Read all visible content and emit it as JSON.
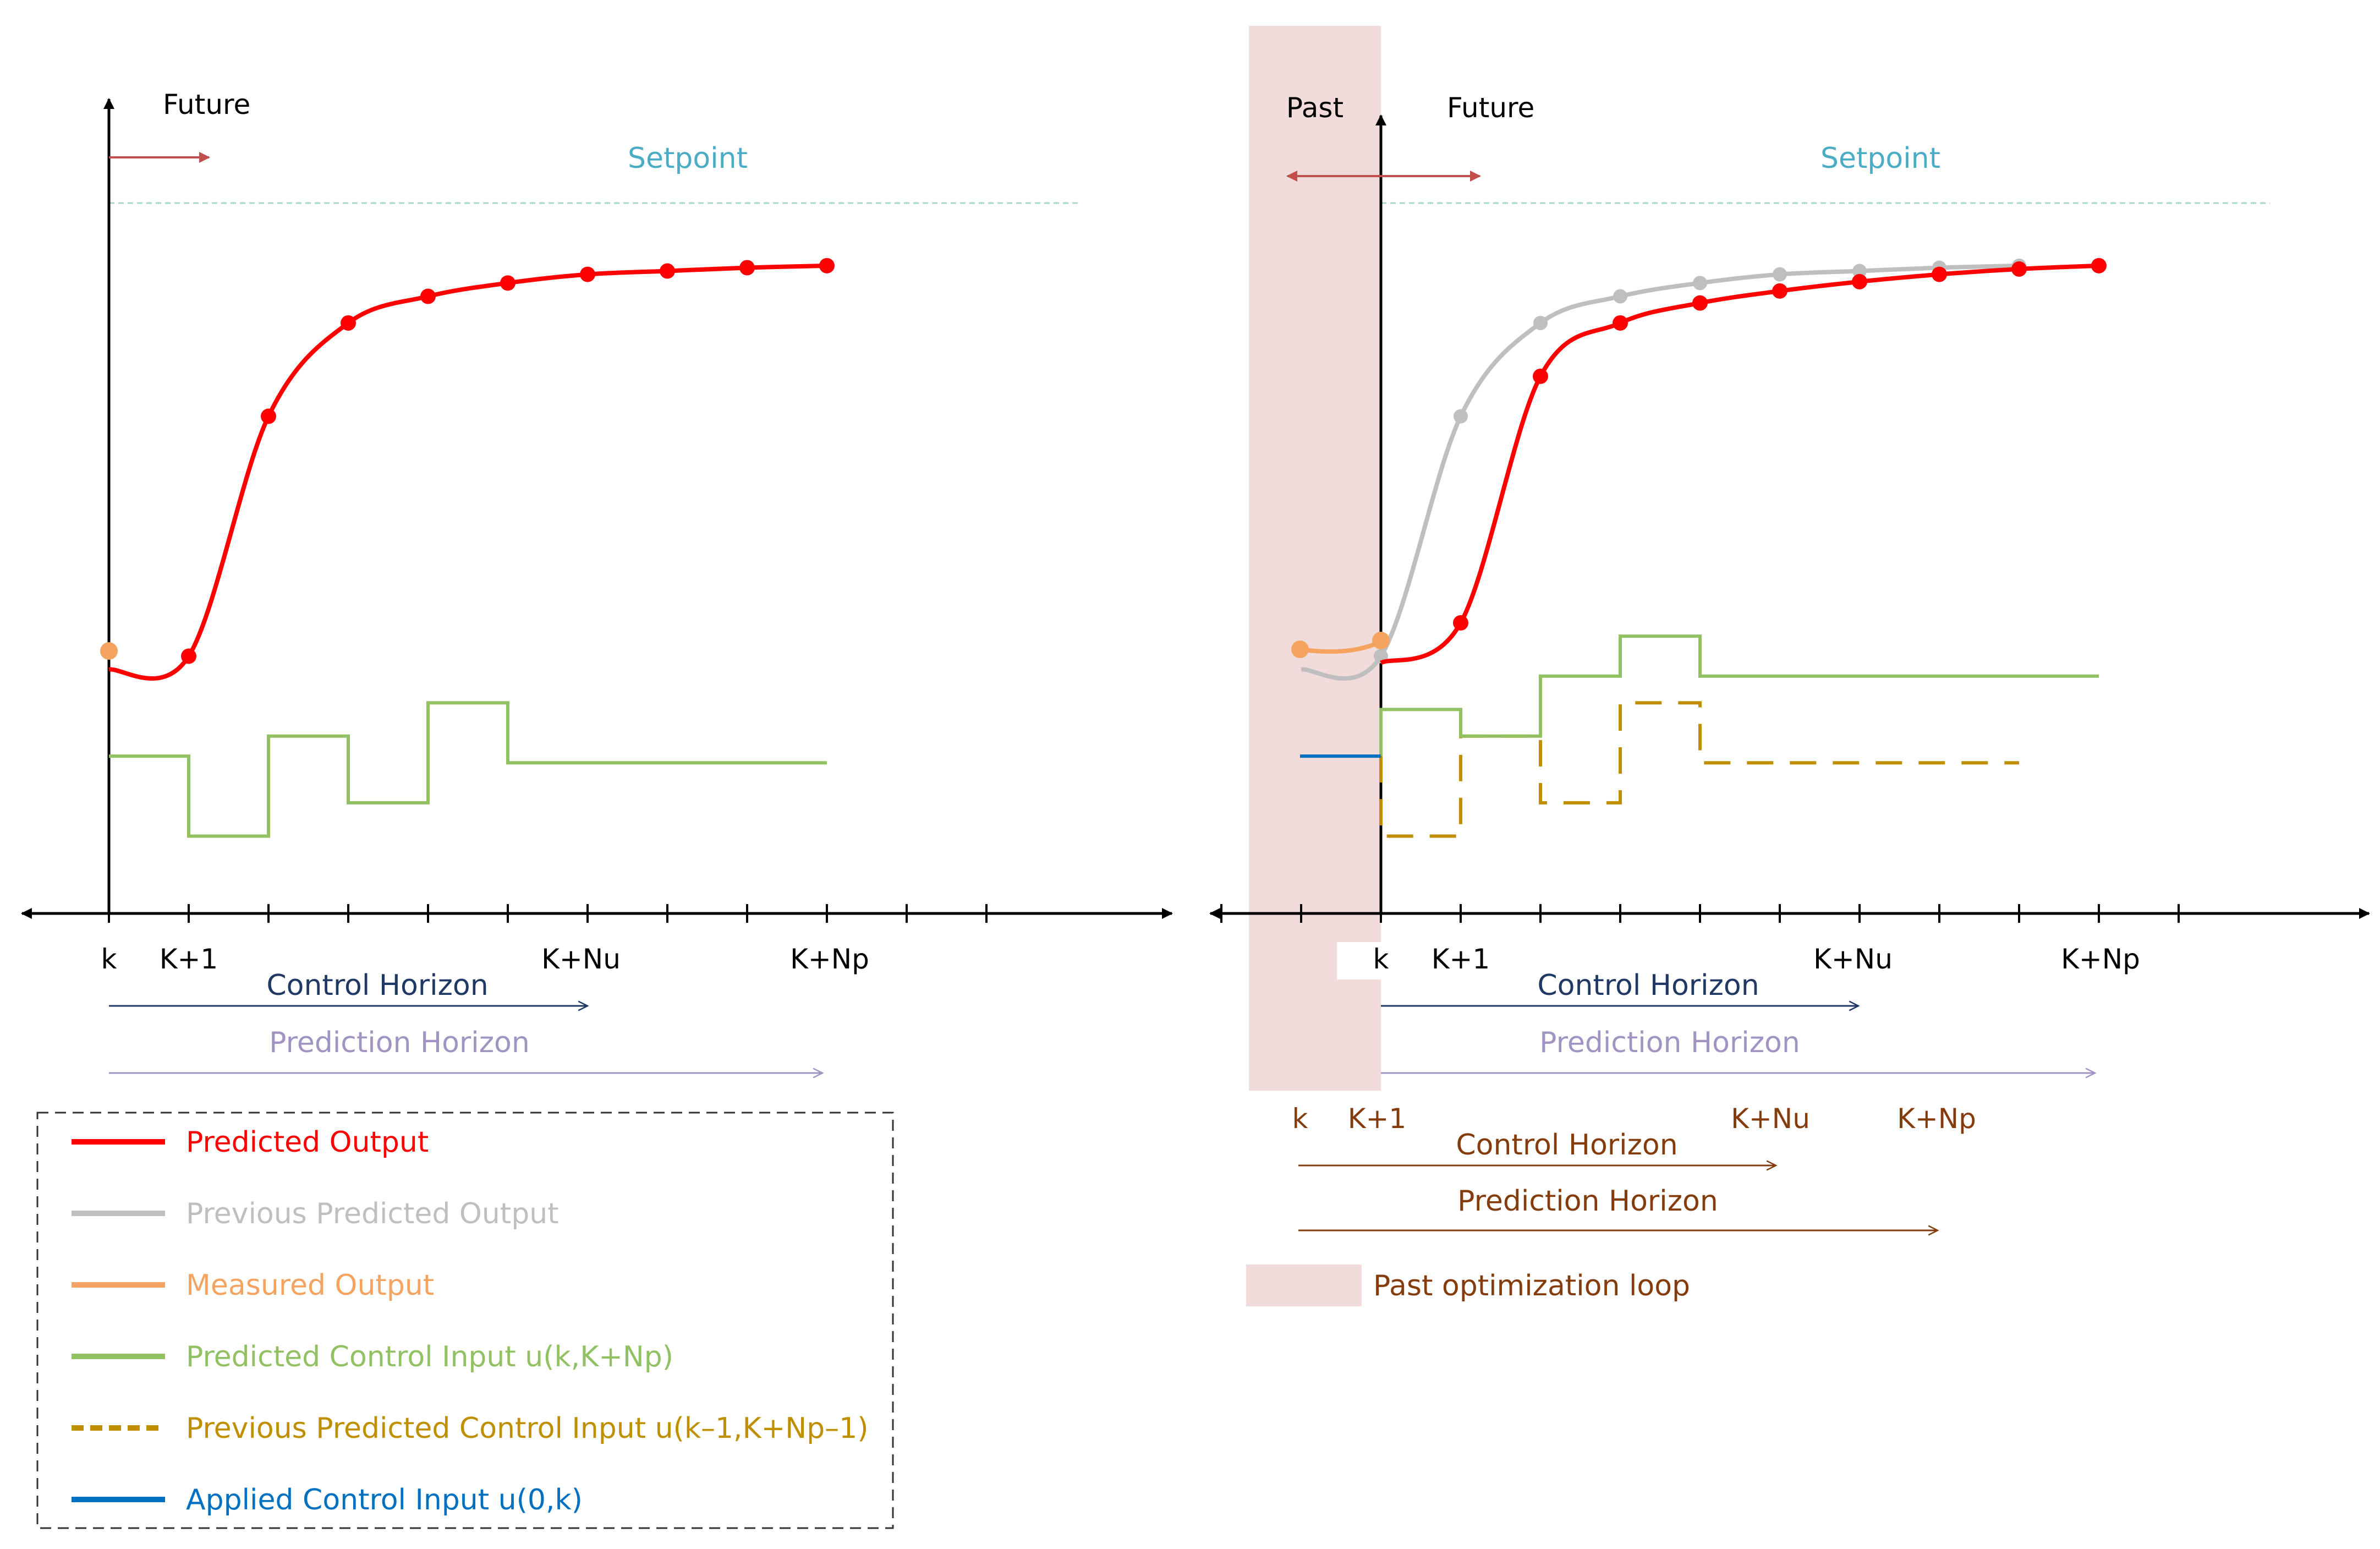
{
  "colors": {
    "predicted_output": "#ff0000",
    "previous_predicted_output": "#bfbfbf",
    "measured_output": "#f4a460",
    "predicted_control": "#92c163",
    "previous_control": "#bf8f00",
    "applied_control": "#0070c0",
    "setpoint": "#4bacc6",
    "axis": "#000000",
    "future_arrow": "#c0504d",
    "control_horizon": "#1f3864",
    "prediction_horizon": "#a294c2",
    "past_shade": "#f2dcdb",
    "past_text": "#843c0c"
  },
  "left_panel": {
    "future_label": "Future",
    "setpoint_label": "Setpoint",
    "tick_labels": {
      "k": "k",
      "k1": "K+1",
      "knu": "K+Nu",
      "knp": "K+Np"
    },
    "control_horizon_label": "Control Horizon",
    "prediction_horizon_label": "Prediction Horizon",
    "predicted_output": [
      0.3,
      0.32,
      0.68,
      0.82,
      0.86,
      0.88,
      0.893,
      0.898,
      0.903,
      0.906
    ],
    "predicted_control": [
      0.17,
      0.05,
      0.2,
      0.1,
      0.25,
      0.16,
      0.16,
      0.16,
      0.16
    ]
  },
  "right_panel": {
    "past_label": "Past",
    "future_label": "Future",
    "setpoint_label": "Setpoint",
    "tick_labels": {
      "k": "k",
      "k1": "K+1",
      "knu": "K+Nu",
      "knp": "K+Np"
    },
    "control_horizon_label": "Control Horizon",
    "prediction_horizon_label": "Prediction Horizon",
    "past_tick_labels": {
      "k": "k",
      "k1": "K+1",
      "knu": "K+Nu",
      "knp": "K+Np"
    },
    "past_control_horizon_label": "Control Horizon",
    "past_prediction_horizon_label": "Prediction Horizon",
    "past_loop_label": "Past optimization loop",
    "previous_predicted_output": [
      0.3,
      0.32,
      0.68,
      0.82,
      0.86,
      0.88,
      0.893,
      0.898,
      0.903,
      0.906
    ],
    "predicted_output": [
      0.31,
      0.37,
      0.74,
      0.82,
      0.85,
      0.868,
      0.882,
      0.893,
      0.901,
      0.906
    ],
    "predicted_control": [
      0.24,
      0.2,
      0.29,
      0.35,
      0.29,
      0.29,
      0.29,
      0.29,
      0.29
    ],
    "previous_control": [
      0.05,
      0.2,
      0.1,
      0.25,
      0.16,
      0.16,
      0.16,
      0.16
    ],
    "applied_control": 0.17
  },
  "legend": {
    "items": [
      {
        "label": "Predicted Output",
        "color": "#ff0000",
        "style": "solid"
      },
      {
        "label": "Previous Predicted Output",
        "color": "#bfbfbf",
        "style": "solid"
      },
      {
        "label": "Measured Output",
        "color": "#f4a460",
        "style": "solid"
      },
      {
        "label": "Predicted Control Input u(k,K+Np)",
        "color": "#92c163",
        "style": "solid"
      },
      {
        "label": "Previous Predicted Control Input u(k–1,K+Np–1)",
        "color": "#bf8f00",
        "style": "dashed"
      },
      {
        "label": "Applied Control Input u(0,k)",
        "color": "#0070c0",
        "style": "solid"
      }
    ]
  }
}
